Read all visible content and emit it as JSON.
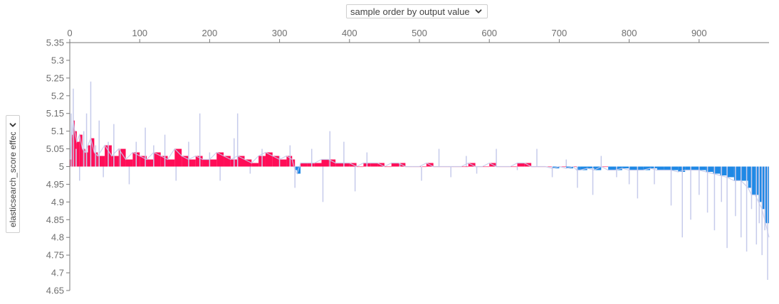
{
  "toolbar": {
    "x_order_label": "sample order by output value",
    "y_select_label": "elasticsearch_score effects"
  },
  "icons": {
    "dropdown": "chevron-down-icon",
    "yselect": "chevron-right-icon"
  },
  "colors": {
    "positive": "#ff0d57",
    "negative": "#1e88e5",
    "outline": "#c6cbeb",
    "axis": "#7a7a7a"
  },
  "chart_data": {
    "type": "area",
    "title": "",
    "xlabel": "sample order by output value",
    "ylabel": "elasticsearch_score effects",
    "base_value": 5.0,
    "xlim": [
      0,
      1000
    ],
    "ylim": [
      4.65,
      5.35
    ],
    "x_ticks": [
      0,
      100,
      200,
      300,
      400,
      500,
      600,
      700,
      800,
      900
    ],
    "y_ticks": [
      5.35,
      5.3,
      5.25,
      5.2,
      5.15,
      5.1,
      5.05,
      5.0,
      4.95,
      4.9,
      4.85,
      4.8,
      4.75,
      4.7,
      4.65
    ],
    "y_tick_labels": [
      "5.35",
      "5.3",
      "5.25",
      "5.2",
      "5.15",
      "5.1",
      "5.05",
      "5",
      "4.95",
      "4.9",
      "4.85",
      "4.8",
      "4.75",
      "4.7",
      "4.65"
    ],
    "grid": false,
    "series": [
      {
        "x": [
          0,
          3,
          5,
          7,
          10,
          14,
          18,
          22,
          26,
          30,
          35,
          40,
          50,
          60,
          70,
          80,
          90,
          100,
          110,
          120,
          130,
          140,
          150,
          160,
          170,
          180,
          190,
          200,
          210,
          220,
          230,
          240,
          250,
          260,
          270,
          280,
          290,
          300,
          310,
          318,
          322,
          325,
          330,
          340,
          350,
          360,
          370,
          380,
          390,
          400,
          410,
          420,
          430,
          440,
          450,
          460,
          470,
          480,
          490,
          500,
          510,
          520,
          530,
          540,
          550,
          560,
          570,
          580,
          590,
          600,
          610,
          620,
          630,
          640,
          650,
          660,
          670,
          680,
          690,
          700,
          710,
          720,
          725,
          730,
          740,
          750,
          760,
          770,
          780,
          790,
          800,
          810,
          820,
          830,
          840,
          850,
          860,
          870,
          880,
          890,
          900,
          910,
          920,
          930,
          940,
          950,
          960,
          970,
          975,
          980,
          985,
          990,
          995,
          1000
        ],
        "values": [
          5.02,
          5.09,
          5.13,
          5.1,
          5.07,
          5.09,
          5.05,
          5.04,
          5.06,
          5.08,
          5.04,
          5.03,
          5.06,
          5.03,
          5.05,
          5.02,
          5.04,
          5.03,
          5.02,
          5.04,
          5.03,
          5.02,
          5.05,
          5.03,
          5.02,
          5.03,
          5.02,
          5.02,
          5.04,
          5.03,
          5.02,
          5.03,
          5.02,
          5.01,
          5.03,
          5.04,
          5.03,
          5.02,
          5.03,
          5.02,
          4.99,
          4.98,
          5.01,
          5.01,
          5.01,
          5.02,
          5.02,
          5.01,
          5.01,
          5.01,
          5.0,
          5.01,
          5.01,
          5.01,
          5.0,
          5.01,
          5.01,
          5.0,
          5.0,
          5.0,
          5.01,
          5.0,
          5.0,
          5.0,
          5.0,
          5.0,
          5.01,
          5.0,
          5.0,
          5.01,
          5.0,
          5.0,
          5.0,
          5.01,
          5.01,
          5.0,
          5.0,
          5.0,
          4.995,
          5.0,
          4.995,
          5.0,
          4.99,
          4.99,
          4.995,
          4.99,
          5.0,
          4.99,
          4.99,
          4.995,
          4.99,
          4.99,
          4.99,
          4.995,
          4.99,
          4.99,
          4.99,
          4.985,
          4.99,
          4.99,
          4.99,
          4.985,
          4.98,
          4.975,
          4.97,
          4.96,
          4.96,
          4.94,
          4.92,
          4.92,
          4.9,
          4.88,
          4.84,
          4.8
        ]
      }
    ],
    "spikes": [
      {
        "x": 2,
        "v": 5.15
      },
      {
        "x": 5,
        "v": 5.22
      },
      {
        "x": 9,
        "v": 5.05
      },
      {
        "x": 14,
        "v": 4.96
      },
      {
        "x": 20,
        "v": 5.1
      },
      {
        "x": 24,
        "v": 5.15
      },
      {
        "x": 30,
        "v": 5.24
      },
      {
        "x": 37,
        "v": 5.06
      },
      {
        "x": 42,
        "v": 5.13
      },
      {
        "x": 48,
        "v": 4.97
      },
      {
        "x": 55,
        "v": 5.07
      },
      {
        "x": 63,
        "v": 5.12
      },
      {
        "x": 72,
        "v": 5.05
      },
      {
        "x": 85,
        "v": 4.95
      },
      {
        "x": 95,
        "v": 5.07
      },
      {
        "x": 108,
        "v": 5.11
      },
      {
        "x": 120,
        "v": 5.06
      },
      {
        "x": 136,
        "v": 5.09
      },
      {
        "x": 152,
        "v": 4.96
      },
      {
        "x": 170,
        "v": 5.07
      },
      {
        "x": 186,
        "v": 5.15
      },
      {
        "x": 200,
        "v": 5.04
      },
      {
        "x": 215,
        "v": 4.96
      },
      {
        "x": 235,
        "v": 5.08
      },
      {
        "x": 240,
        "v": 5.15
      },
      {
        "x": 258,
        "v": 4.98
      },
      {
        "x": 275,
        "v": 5.05
      },
      {
        "x": 300,
        "v": 5.03
      },
      {
        "x": 315,
        "v": 5.06
      },
      {
        "x": 322,
        "v": 4.94
      },
      {
        "x": 346,
        "v": 5.05
      },
      {
        "x": 362,
        "v": 4.9
      },
      {
        "x": 372,
        "v": 5.1
      },
      {
        "x": 392,
        "v": 5.07
      },
      {
        "x": 408,
        "v": 4.93
      },
      {
        "x": 425,
        "v": 5.04
      },
      {
        "x": 452,
        "v": 5.0
      },
      {
        "x": 472,
        "v": 5.01
      },
      {
        "x": 503,
        "v": 4.96
      },
      {
        "x": 528,
        "v": 5.05
      },
      {
        "x": 545,
        "v": 4.97
      },
      {
        "x": 567,
        "v": 5.03
      },
      {
        "x": 582,
        "v": 4.98
      },
      {
        "x": 610,
        "v": 5.05
      },
      {
        "x": 640,
        "v": 4.99
      },
      {
        "x": 668,
        "v": 5.05
      },
      {
        "x": 690,
        "v": 4.97
      },
      {
        "x": 710,
        "v": 5.02
      },
      {
        "x": 726,
        "v": 4.94
      },
      {
        "x": 748,
        "v": 4.92
      },
      {
        "x": 760,
        "v": 5.03
      },
      {
        "x": 782,
        "v": 4.97
      },
      {
        "x": 800,
        "v": 4.95
      },
      {
        "x": 812,
        "v": 4.91
      },
      {
        "x": 836,
        "v": 4.95
      },
      {
        "x": 860,
        "v": 4.89
      },
      {
        "x": 876,
        "v": 4.8
      },
      {
        "x": 888,
        "v": 4.85
      },
      {
        "x": 900,
        "v": 4.92
      },
      {
        "x": 912,
        "v": 4.87
      },
      {
        "x": 922,
        "v": 4.82
      },
      {
        "x": 932,
        "v": 4.9
      },
      {
        "x": 940,
        "v": 4.77
      },
      {
        "x": 952,
        "v": 4.86
      },
      {
        "x": 960,
        "v": 4.8
      },
      {
        "x": 968,
        "v": 4.76
      },
      {
        "x": 975,
        "v": 4.88
      },
      {
        "x": 982,
        "v": 4.78
      },
      {
        "x": 986,
        "v": 4.84
      },
      {
        "x": 990,
        "v": 4.75
      },
      {
        "x": 994,
        "v": 4.82
      },
      {
        "x": 998,
        "v": 4.68
      }
    ]
  }
}
